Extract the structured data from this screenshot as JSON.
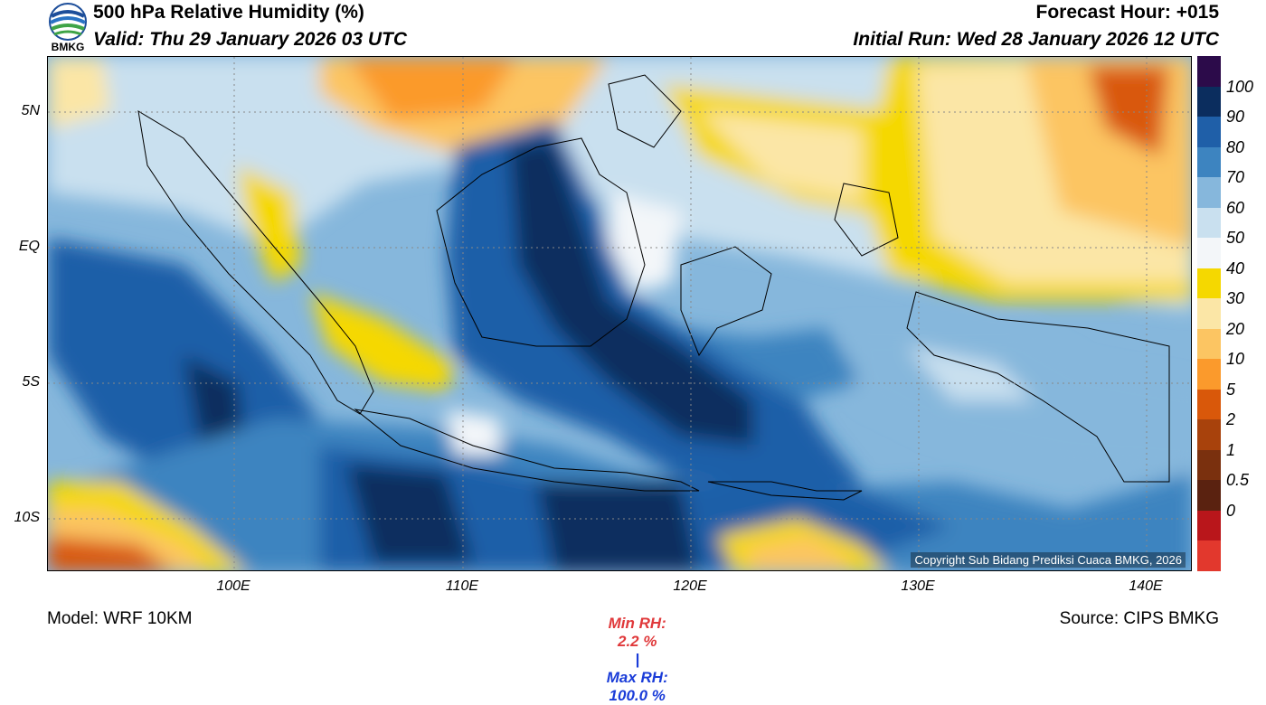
{
  "header": {
    "title": "500 hPa Relative Humidity (%)",
    "valid": "Valid: Thu 29 January 2026 03 UTC",
    "forecast_hour": "Forecast Hour: +015",
    "initial_run": "Initial Run: Wed 28 January 2026 12 UTC",
    "logo_text": "BMKG"
  },
  "map": {
    "lat_ticks": [
      "5N",
      "EQ",
      "5S",
      "10S"
    ],
    "lon_ticks": [
      "100E",
      "110E",
      "120E",
      "130E",
      "140E"
    ],
    "copyright": "Copyright Sub Bidang Prediksi Cuaca BMKG, 2026"
  },
  "colorbar": {
    "labels": [
      "100",
      "90",
      "80",
      "70",
      "60",
      "50",
      "40",
      "30",
      "20",
      "10",
      "5",
      "2",
      "1",
      "0.5",
      "0"
    ],
    "colors": [
      "#2c0b4a",
      "#0b2d5e",
      "#1f5fa8",
      "#3d84c0",
      "#86b7dc",
      "#c9e0ef",
      "#f3f6f9",
      "#f5d800",
      "#fbe6a6",
      "#fcc562",
      "#fb9a2c",
      "#d9580a",
      "#a8420c",
      "#7a300e",
      "#5a2210",
      "#b9161b",
      "#e2382d"
    ]
  },
  "stats": {
    "min_label": "Min RH:",
    "min_value": "2.2 %",
    "separator": "|",
    "max_label": "Max RH:",
    "max_value": "100.0 %"
  },
  "footer": {
    "model": "Model: WRF 10KM",
    "source": "Source: CIPS BMKG"
  }
}
